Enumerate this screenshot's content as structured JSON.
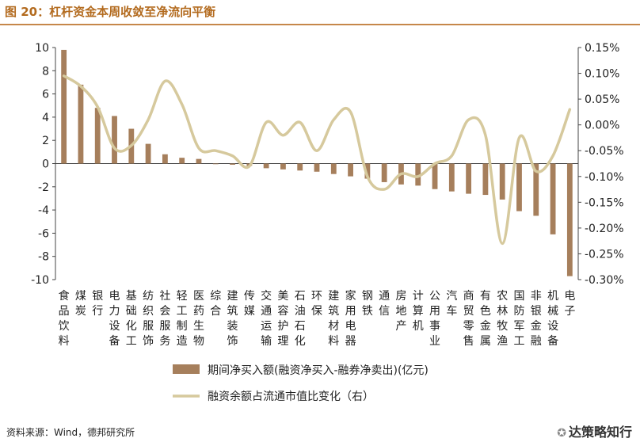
{
  "title": "图 20：杠杆资金本周收敛至净流向平衡",
  "source": "资料来源：Wind，德邦研究所",
  "watermark": "达策略知行",
  "colors": {
    "bar": "#a67f5c",
    "line": "#d6c99d",
    "title": "#b36b1f",
    "rule": "#c6874a"
  },
  "chart_data": {
    "type": "bar",
    "categories": [
      "食品饮料",
      "煤炭",
      "银行",
      "电力设备",
      "基础化工",
      "纺织服饰",
      "社会服务",
      "轻工制造",
      "医药生物",
      "综合",
      "建筑装饰",
      "传媒",
      "交通运输",
      "美容护理",
      "石油石化",
      "环保",
      "建筑材料",
      "家用电器",
      "钢铁",
      "通信",
      "房地产",
      "计算机",
      "公用事业",
      "汽车",
      "商贸零售",
      "有色金属",
      "农林牧渔",
      "国防军工",
      "非银金融",
      "机械设备",
      "电子"
    ],
    "y_left": {
      "min": -10,
      "max": 10,
      "ticks": [
        -10,
        -8,
        -6,
        -4,
        -2,
        0,
        2,
        4,
        6,
        8,
        10
      ]
    },
    "y_right": {
      "min": -0.3,
      "max": 0.15,
      "ticks": [
        "-0.30%",
        "-0.25%",
        "-0.20%",
        "-0.15%",
        "-0.10%",
        "-0.05%",
        "0.00%",
        "0.05%",
        "0.10%",
        "0.15%"
      ]
    },
    "series": [
      {
        "name": "期间净买入额(融资净买入-融券净卖出)(亿元)",
        "type": "bar",
        "axis": "left",
        "values": [
          9.8,
          6.8,
          4.8,
          4.1,
          3.0,
          1.7,
          0.8,
          0.5,
          0.4,
          0.0,
          -0.1,
          -0.2,
          -0.4,
          -0.5,
          -0.6,
          -0.7,
          -0.9,
          -1.1,
          -1.3,
          -1.6,
          -1.8,
          -1.9,
          -2.2,
          -2.4,
          -2.6,
          -2.7,
          -3.1,
          -4.1,
          -4.5,
          -6.1,
          -9.7
        ]
      },
      {
        "name": "融资余额占流通市值比变化（右）",
        "type": "line",
        "axis": "right",
        "values": [
          0.095,
          0.075,
          0.035,
          -0.045,
          -0.04,
          0.01,
          0.085,
          0.04,
          -0.045,
          -0.05,
          -0.06,
          -0.08,
          0.005,
          -0.02,
          0.005,
          -0.05,
          0.01,
          0.025,
          -0.1,
          -0.125,
          -0.095,
          -0.1,
          -0.075,
          -0.06,
          0.01,
          -0.02,
          -0.23,
          -0.025,
          -0.09,
          -0.06,
          0.03
        ]
      }
    ]
  }
}
